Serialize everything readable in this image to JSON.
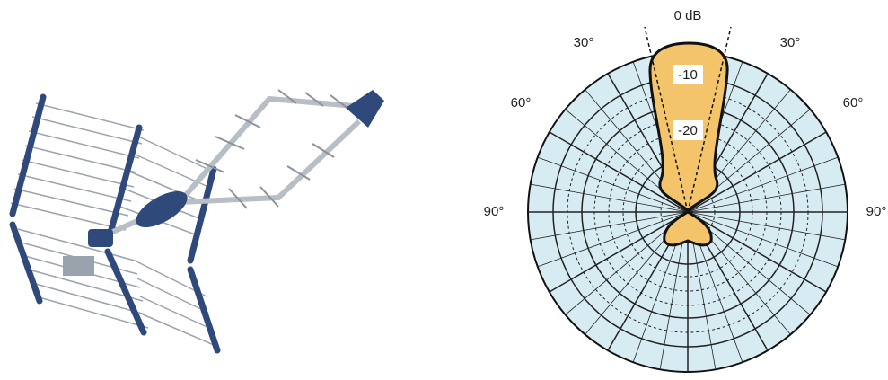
{
  "pattern": {
    "title": "0 dB",
    "angles_left": [
      "30°",
      "60°",
      "90°"
    ],
    "angles_right": [
      "30°",
      "60°",
      "90°"
    ],
    "levels": [
      "-10",
      "-20"
    ]
  }
}
